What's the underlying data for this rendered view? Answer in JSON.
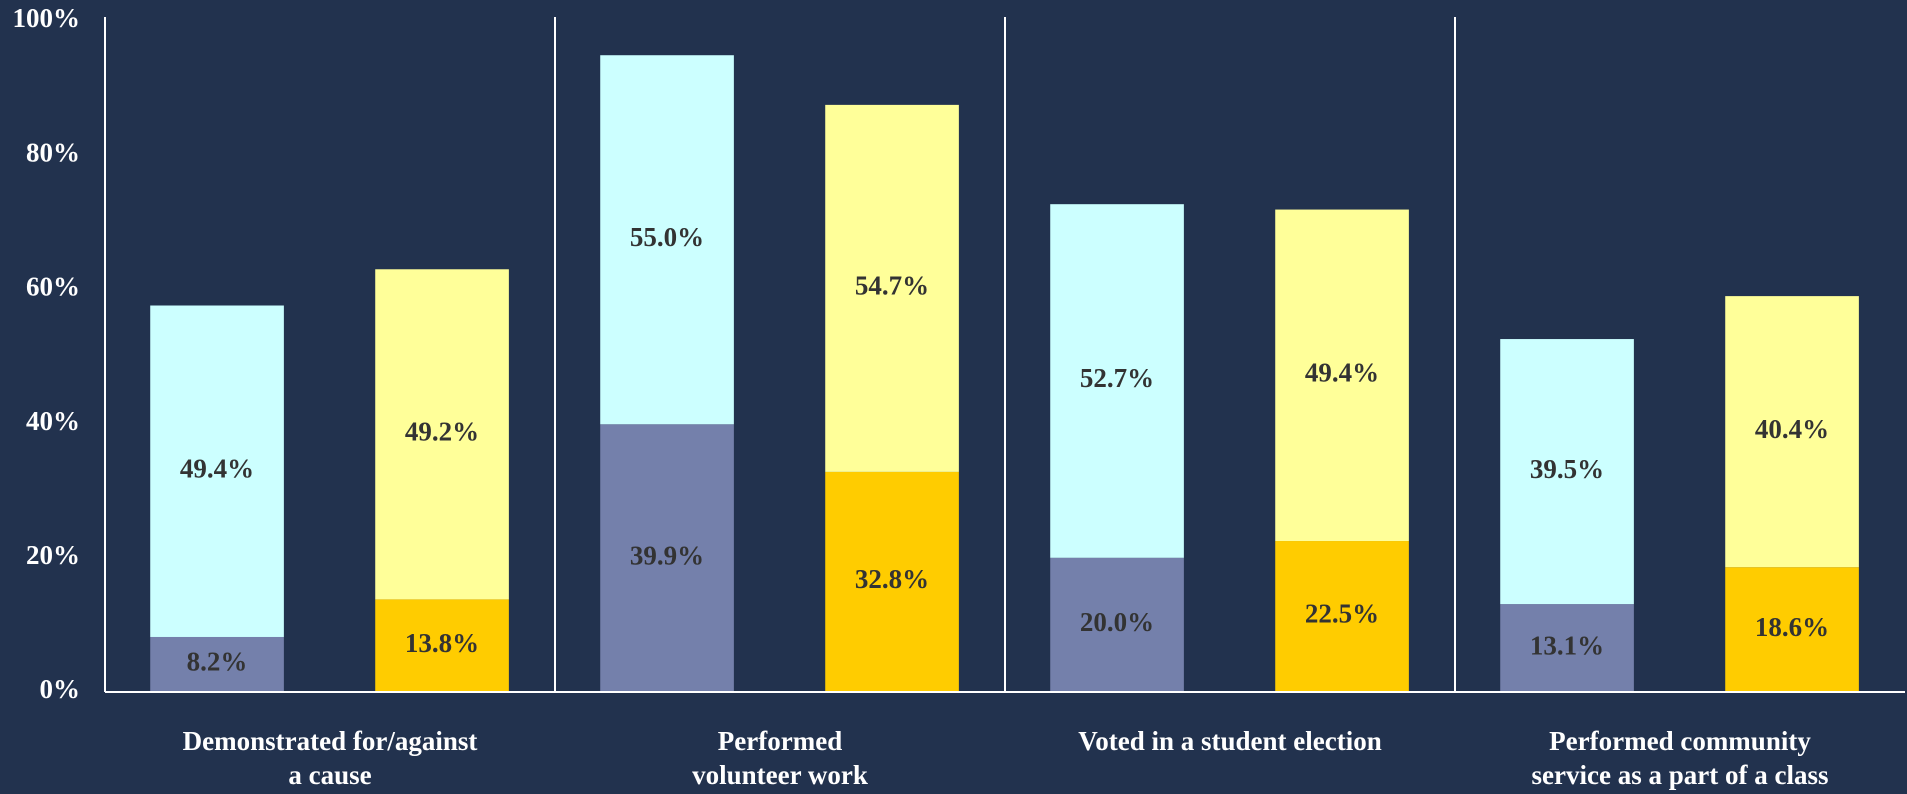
{
  "chart_data": {
    "type": "stacked-bar",
    "categories": [
      [
        "Demonstrated for/against",
        "a cause"
      ],
      [
        "Performed",
        "volunteer work"
      ],
      [
        "Voted in a student election"
      ],
      [
        "Performed community",
        "service as a part of a class"
      ]
    ],
    "ylim": [
      0,
      100
    ],
    "yticks": [
      {
        "value": 0,
        "label": "0%"
      },
      {
        "value": 20,
        "label": "20%"
      },
      {
        "value": 40,
        "label": "40%"
      },
      {
        "value": 60,
        "label": "60%"
      },
      {
        "value": 80,
        "label": "80%"
      },
      {
        "value": 100,
        "label": "100%"
      }
    ],
    "series": [
      {
        "stack": 0,
        "color": "#7480ab",
        "values": [
          8.2,
          39.9,
          20.0,
          13.1
        ],
        "value_labels": [
          "8.2%",
          "39.9%",
          "20.0%",
          "13.1%"
        ]
      },
      {
        "stack": 0,
        "color": "#ccffff",
        "values": [
          49.4,
          55.0,
          52.7,
          39.5
        ],
        "value_labels": [
          "49.4%",
          "55.0%",
          "52.7%",
          "39.5%"
        ]
      },
      {
        "stack": 1,
        "color": "#ffcc00",
        "values": [
          13.8,
          32.8,
          22.5,
          18.6
        ],
        "value_labels": [
          "13.8%",
          "32.8%",
          "22.5%",
          "18.6%"
        ]
      },
      {
        "stack": 1,
        "color": "#ffff99",
        "values": [
          49.2,
          54.7,
          49.4,
          40.4
        ],
        "value_labels": [
          "49.2%",
          "54.7%",
          "49.4%",
          "40.4%"
        ]
      }
    ]
  }
}
